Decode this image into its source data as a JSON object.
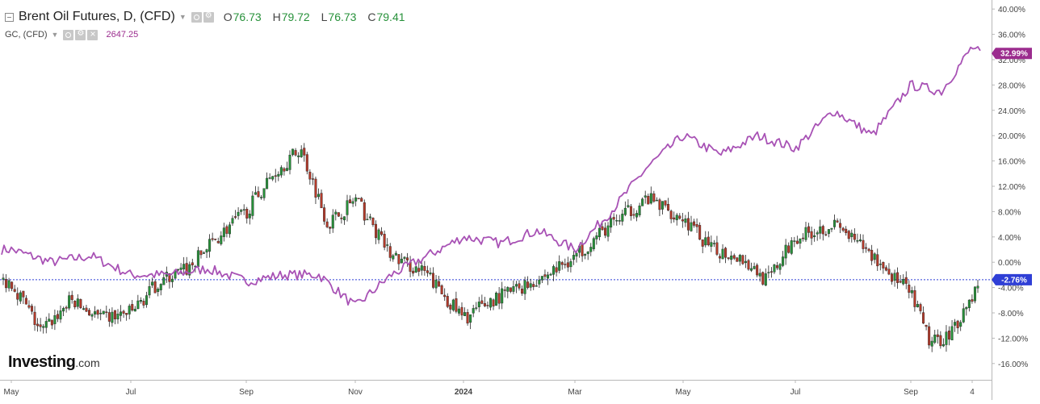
{
  "header": {
    "symbol": "Brent Oil Futures, D, (CFD)",
    "ohlc": [
      {
        "label": "O",
        "value": "76.73"
      },
      {
        "label": "H",
        "value": "79.72"
      },
      {
        "label": "L",
        "value": "76.73"
      },
      {
        "label": "C",
        "value": "79.41"
      }
    ],
    "compare_symbol": "GC, (CFD)",
    "compare_value": "2647.25"
  },
  "logo": {
    "brand": "Investing",
    "suffix": ".com"
  },
  "colors": {
    "up": "#27913a",
    "down": "#b33a2a",
    "compare_line": "#a852b5",
    "zero_line": "#2f3fd6",
    "brent_badge": "#2f3fd6",
    "gold_badge": "#9b2c8e"
  },
  "icons": [
    "collapse-icon",
    "chevron-down-icon",
    "eye-icon",
    "gear-icon",
    "close-icon"
  ],
  "chart_data": {
    "type": "line",
    "y_axis": {
      "unit": "%",
      "side": "right",
      "ticks": [
        "40.00%",
        "36.00%",
        "32.00%",
        "28.00%",
        "24.00%",
        "20.00%",
        "16.00%",
        "12.00%",
        "8.00%",
        "4.00%",
        "0.00%",
        "-4.00%",
        "-8.00%",
        "-12.00%",
        "-16.00%"
      ],
      "range": [
        -19,
        40
      ]
    },
    "x_axis": {
      "ticks": [
        "May",
        "Jul",
        "Sep",
        "Nov",
        "2024",
        "Mar",
        "May",
        "Jul",
        "Sep",
        "4"
      ]
    },
    "grid": false,
    "series": [
      {
        "name": "Brent Oil Futures, D, (CFD)",
        "style": "candlestick",
        "last_label": "-2.76%",
        "approx_close_pct_path": [
          [
            "May",
            -3
          ],
          [
            "May",
            -11
          ],
          [
            "May",
            -6
          ],
          [
            "May",
            -9
          ],
          [
            "Jul",
            -8
          ],
          [
            "Jul",
            -3
          ],
          [
            "Jul",
            -1
          ],
          [
            "Jul",
            4
          ],
          [
            "Sep",
            8
          ],
          [
            "Sep",
            14
          ],
          [
            "Sep",
            18
          ],
          [
            "Sep",
            6
          ],
          [
            "Nov",
            10
          ],
          [
            "Nov",
            1
          ],
          [
            "Nov",
            -2
          ],
          [
            "2024",
            -9
          ],
          [
            "2024",
            -6
          ],
          [
            "2024",
            -4
          ],
          [
            "2024",
            -2
          ],
          [
            "Mar",
            1
          ],
          [
            "Mar",
            6
          ],
          [
            "Mar",
            10
          ],
          [
            "May",
            7
          ],
          [
            "May",
            2
          ],
          [
            "May",
            1
          ],
          [
            "May",
            -3
          ],
          [
            "Jul",
            4
          ],
          [
            "Jul",
            6
          ],
          [
            "Jul",
            1
          ],
          [
            "Sep",
            -5
          ],
          [
            "Sep",
            -13
          ],
          [
            "Sep",
            -11
          ],
          [
            "4",
            -3
          ]
        ]
      },
      {
        "name": "GC, (CFD)",
        "style": "line",
        "last_label": "32.99%",
        "approx_pct_path": [
          [
            "May",
            2
          ],
          [
            "May",
            0
          ],
          [
            "May",
            1
          ],
          [
            "Jul",
            -2
          ],
          [
            "Jul",
            -2
          ],
          [
            "Jul",
            -1
          ],
          [
            "Sep",
            -3
          ],
          [
            "Sep",
            -2
          ],
          [
            "Sep",
            -2
          ],
          [
            "Nov",
            -7
          ],
          [
            "Nov",
            -2
          ],
          [
            "Nov",
            1
          ],
          [
            "2024",
            4
          ],
          [
            "2024",
            3
          ],
          [
            "2024",
            5
          ],
          [
            "Mar",
            2
          ],
          [
            "Mar",
            8
          ],
          [
            "Mar",
            15
          ],
          [
            "May",
            20
          ],
          [
            "May",
            17
          ],
          [
            "May",
            20
          ],
          [
            "Jul",
            18
          ],
          [
            "Jul",
            24
          ],
          [
            "Jul",
            20
          ],
          [
            "Sep",
            28
          ],
          [
            "Sep",
            27
          ],
          [
            "4",
            34
          ],
          [
            "4",
            32.99
          ]
        ]
      }
    ]
  }
}
